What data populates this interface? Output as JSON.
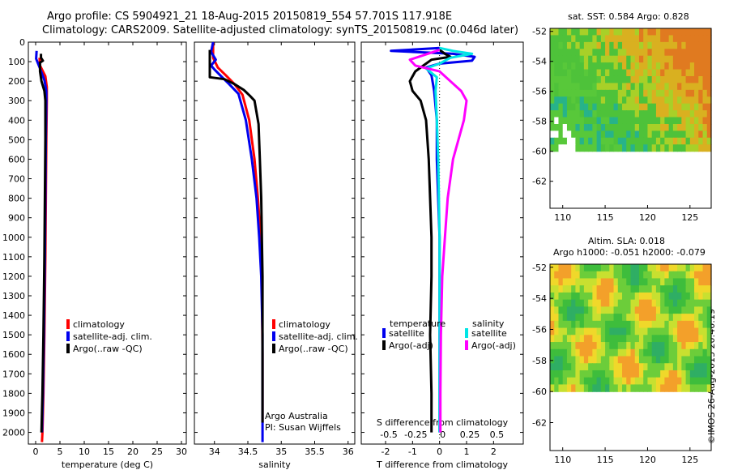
{
  "header": {
    "line1": "Argo profile: CS 5904921_21 18-Aug-2015 20150819_554 57.701S 117.918E",
    "line2": "Climatology: CARS2009. Satellite-adjusted climatology: synTS_20150819.nc (0.046d later)"
  },
  "credit": "©IMOS 26-Aug-2015 20:40:19",
  "colors": {
    "clim": "#ff0000",
    "sat": "#0000ee",
    "argo": "#000000",
    "sat_s": "#00e5e5",
    "argo_s": "#ff00ff"
  },
  "chart_data": [
    {
      "type": "line",
      "id": "temperature",
      "xlabel": "temperature (deg C)",
      "ylabel": "",
      "xlim": [
        -1.5,
        31
      ],
      "ylim": [
        2060,
        0
      ],
      "xticks": [
        0,
        5,
        10,
        15,
        20,
        25,
        30
      ],
      "yticks": [
        0,
        100,
        200,
        300,
        400,
        500,
        600,
        700,
        800,
        900,
        1000,
        1100,
        1200,
        1300,
        1400,
        1500,
        1600,
        1700,
        1800,
        1900,
        2000
      ],
      "legend": [
        "climatology",
        "satellite-adj. clim.",
        "Argo(..raw -QC)"
      ],
      "series": [
        {
          "name": "climatology",
          "color": "clim",
          "points": [
            [
              0.8,
              80
            ],
            [
              0.9,
              120
            ],
            [
              2.0,
              175
            ],
            [
              2.3,
              230
            ],
            [
              2.3,
              300
            ],
            [
              2.2,
              500
            ],
            [
              2.1,
              800
            ],
            [
              2.0,
              1100
            ],
            [
              1.8,
              1500
            ],
            [
              1.6,
              1800
            ],
            [
              1.4,
              2000
            ],
            [
              1.3,
              2050
            ]
          ]
        },
        {
          "name": "satellite-adj. clim.",
          "color": "sat",
          "points": [
            [
              0.2,
              45
            ],
            [
              0.1,
              85
            ],
            [
              0.9,
              135
            ],
            [
              1.8,
              195
            ],
            [
              2.2,
              250
            ],
            [
              2.2,
              300
            ],
            [
              2.1,
              500
            ],
            [
              2.0,
              800
            ],
            [
              1.9,
              1100
            ],
            [
              1.7,
              1500
            ],
            [
              1.5,
              1800
            ],
            [
              1.3,
              2000
            ]
          ]
        },
        {
          "name": "Argo(..raw -QC)",
          "color": "argo",
          "points": [
            [
              1.1,
              60
            ],
            [
              1.1,
              80
            ],
            [
              1.5,
              95
            ],
            [
              0.9,
              105
            ],
            [
              0.9,
              150
            ],
            [
              1.2,
              200
            ],
            [
              1.8,
              250
            ],
            [
              2.0,
              300
            ],
            [
              2.0,
              500
            ],
            [
              1.9,
              800
            ],
            [
              1.8,
              1100
            ],
            [
              1.6,
              1500
            ],
            [
              1.4,
              1800
            ],
            [
              1.2,
              2000
            ]
          ]
        }
      ]
    },
    {
      "type": "line",
      "id": "salinity",
      "xlabel": "salinity",
      "xlim": [
        33.7,
        36.1
      ],
      "ylim": [
        2060,
        0
      ],
      "xticks": [
        34,
        34.5,
        35,
        35.5,
        36
      ],
      "legend": [
        "climatology",
        "satellite-adj. clim.",
        "Argo(..raw -QC)"
      ],
      "annotation": [
        "Argo Australia",
        "PI: Susan Wijffels"
      ],
      "series": [
        {
          "name": "climatology",
          "color": "clim",
          "points": [
            [
              33.98,
              0
            ],
            [
              33.98,
              80
            ],
            [
              34.05,
              130
            ],
            [
              34.17,
              170
            ],
            [
              34.3,
              215
            ],
            [
              34.42,
              270
            ],
            [
              34.52,
              400
            ],
            [
              34.6,
              600
            ],
            [
              34.65,
              800
            ],
            [
              34.69,
              1000
            ],
            [
              34.71,
              1200
            ],
            [
              34.72,
              1600
            ],
            [
              34.72,
              1950
            ]
          ]
        },
        {
          "name": "satellite-adj. clim.",
          "color": "sat",
          "points": [
            [
              33.98,
              0
            ],
            [
              33.95,
              50
            ],
            [
              34.02,
              90
            ],
            [
              33.95,
              120
            ],
            [
              34.0,
              140
            ],
            [
              34.1,
              175
            ],
            [
              34.22,
              215
            ],
            [
              34.36,
              265
            ],
            [
              34.47,
              400
            ],
            [
              34.56,
              600
            ],
            [
              34.63,
              800
            ],
            [
              34.67,
              1000
            ],
            [
              34.7,
              1200
            ],
            [
              34.72,
              1500
            ],
            [
              34.72,
              2050
            ]
          ]
        },
        {
          "name": "Argo(..raw -QC)",
          "color": "argo",
          "points": [
            [
              33.93,
              40
            ],
            [
              33.93,
              180
            ],
            [
              34.15,
              190
            ],
            [
              34.3,
              215
            ],
            [
              34.44,
              245
            ],
            [
              34.53,
              275
            ],
            [
              34.6,
              300
            ],
            [
              34.66,
              420
            ],
            [
              34.68,
              600
            ],
            [
              34.7,
              800
            ],
            [
              34.71,
              1000
            ],
            [
              34.72,
              1200
            ],
            [
              34.72,
              1600
            ],
            [
              34.72,
              1950
            ]
          ]
        }
      ]
    },
    {
      "type": "line",
      "id": "difference",
      "xlabel": "T difference from climatology",
      "xlabel_top": "S difference from climatology",
      "xlim": [
        -2.9,
        3.1
      ],
      "ylim": [
        2060,
        0
      ],
      "xticks": [
        -2,
        -1,
        0,
        1,
        2
      ],
      "xticks_top": [
        "-0.5",
        "-0.25",
        "0",
        "0.25",
        "0.5"
      ],
      "legend": {
        "temperature": {
          "title": "temperature",
          "items": [
            "satellite",
            "Argo(-adj)"
          ]
        },
        "salinity": {
          "title": "salinity",
          "items": [
            "satellite",
            "Argo(-adj)"
          ]
        }
      },
      "series": [
        {
          "name": "temperature satellite",
          "color": "sat",
          "points": [
            [
              0,
              30
            ],
            [
              -1.8,
              45
            ],
            [
              -0.2,
              55
            ],
            [
              0.5,
              60
            ],
            [
              1.3,
              75
            ],
            [
              1.2,
              95
            ],
            [
              0,
              110
            ],
            [
              -0.5,
              130
            ],
            [
              -0.3,
              170
            ],
            [
              -0.2,
              250
            ],
            [
              -0.1,
              400
            ],
            [
              -0.1,
              600
            ],
            [
              0,
              1000
            ],
            [
              0,
              2000
            ]
          ]
        },
        {
          "name": "temperature Argo(-adj)",
          "color": "argo",
          "points": [
            [
              0,
              40
            ],
            [
              0.2,
              60
            ],
            [
              0.4,
              75
            ],
            [
              -0.3,
              90
            ],
            [
              -0.6,
              120
            ],
            [
              -0.9,
              150
            ],
            [
              -1.1,
              200
            ],
            [
              -1.0,
              250
            ],
            [
              -0.7,
              300
            ],
            [
              -0.5,
              400
            ],
            [
              -0.4,
              600
            ],
            [
              -0.35,
              800
            ],
            [
              -0.3,
              1000
            ],
            [
              -0.3,
              1200
            ],
            [
              -0.35,
              1500
            ],
            [
              -0.3,
              1800
            ],
            [
              -0.3,
              2000
            ]
          ]
        },
        {
          "name": "salinity satellite",
          "color": "sat_s",
          "points": [
            [
              0,
              30
            ],
            [
              0.5,
              45
            ],
            [
              1.2,
              60
            ],
            [
              0.4,
              80
            ],
            [
              0.0,
              110
            ],
            [
              -0.5,
              135
            ],
            [
              -0.1,
              180
            ],
            [
              -0.15,
              250
            ],
            [
              -0.1,
              400
            ],
            [
              -0.05,
              600
            ],
            [
              0,
              1000
            ],
            [
              0,
              1500
            ],
            [
              0,
              2000
            ]
          ]
        },
        {
          "name": "salinity Argo(-adj)",
          "color": "argo_s",
          "points": [
            [
              0,
              40
            ],
            [
              -1.1,
              90
            ],
            [
              -0.9,
              120
            ],
            [
              0,
              150
            ],
            [
              0.4,
              200
            ],
            [
              0.8,
              250
            ],
            [
              1.0,
              300
            ],
            [
              0.9,
              400
            ],
            [
              0.5,
              600
            ],
            [
              0.3,
              800
            ],
            [
              0.2,
              1000
            ],
            [
              0.1,
              1200
            ],
            [
              0.05,
              1500
            ],
            [
              0.03,
              1800
            ],
            [
              0.03,
              2000
            ]
          ]
        }
      ]
    },
    {
      "type": "heatmap",
      "id": "sst",
      "title": "sat. SST: 0.584  Argo: 0.828",
      "xlim": [
        108.5,
        127.5
      ],
      "ylim": [
        -63.8,
        -51.8
      ],
      "xticks": [
        110,
        115,
        120,
        125
      ],
      "yticks": [
        -52,
        -54,
        -56,
        -58,
        -60,
        -62
      ],
      "data_bottom": -60
    },
    {
      "type": "heatmap",
      "id": "sla",
      "title": "Altim. SLA: 0.018",
      "subtitle": "Argo h1000: -0.051  h2000: -0.079",
      "xlim": [
        108.5,
        127.5
      ],
      "ylim": [
        -63.8,
        -51.8
      ],
      "xticks": [
        110,
        115,
        120,
        125
      ],
      "yticks": [
        -52,
        -54,
        -56,
        -58,
        -60,
        -62
      ],
      "data_bottom": -60
    }
  ]
}
